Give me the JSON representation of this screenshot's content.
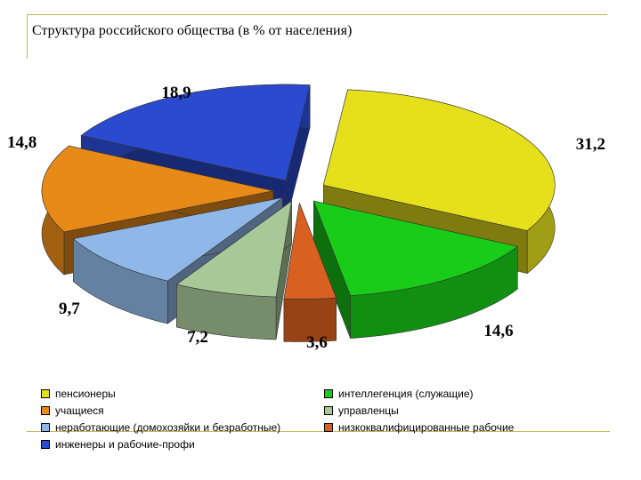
{
  "chart_data": {
    "type": "pie",
    "title": "Структура российского общества (в % от населения)",
    "categories": [
      "пенсионеры",
      "учащиеся",
      "неработающие (домохозяйки и безработные)",
      "инженеры и рабочие-профи",
      "интеллегенция (служащие)",
      "управленцы",
      "низкоквалифицированные рабочие"
    ],
    "values": [
      31.2,
      14.8,
      9.7,
      18.9,
      14.6,
      7.2,
      3.6
    ],
    "value_labels": [
      "31,2",
      "14,8",
      "9,7",
      "18,9",
      "14,6",
      "7,2",
      "3,6"
    ],
    "colors": [
      "#e6e01c",
      "#e88a18",
      "#8fb8e8",
      "#2a4ad0",
      "#18cc18",
      "#a8c898",
      "#d86020"
    ],
    "exploded": true,
    "style": "3d",
    "legend_position": "bottom"
  },
  "legend": {
    "items": [
      {
        "label": "пенсионеры",
        "color": "#e6e01c"
      },
      {
        "label": "учащиеся",
        "color": "#e88a18"
      },
      {
        "label": "неработающие (домохозяйки и безработные)",
        "color": "#8fb8e8"
      },
      {
        "label": "инженеры и рабочие-профи",
        "color": "#2a4ad0"
      },
      {
        "label": "интеллегенция (служащие)",
        "color": "#18cc18"
      },
      {
        "label": "управленцы",
        "color": "#a8c898"
      },
      {
        "label": "низкоквалифицированные рабочие",
        "color": "#d86020"
      }
    ]
  }
}
